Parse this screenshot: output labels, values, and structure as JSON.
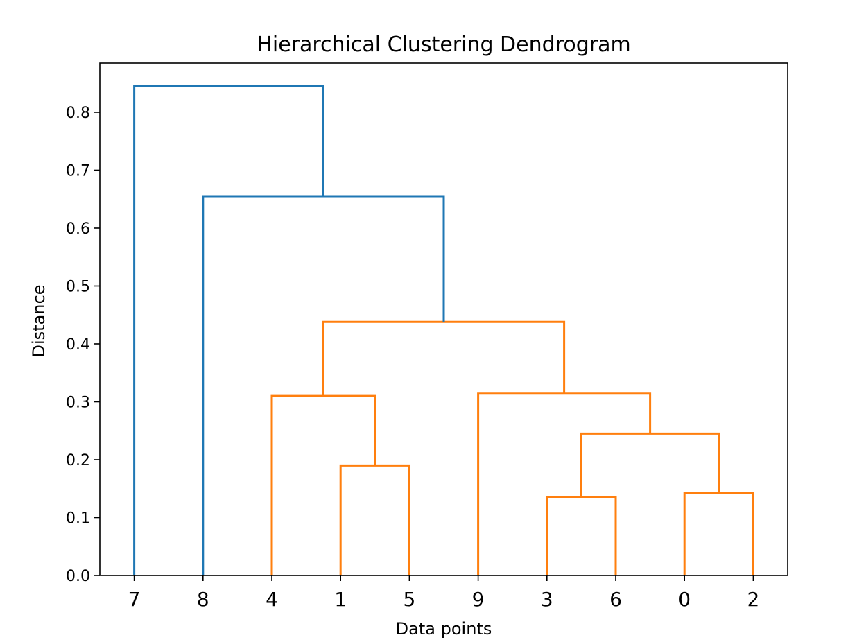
{
  "chart_data": {
    "type": "dendrogram",
    "title": "Hierarchical Clustering Dendrogram",
    "xlabel": "Data points",
    "ylabel": "Distance",
    "ylim": [
      0.0,
      0.885
    ],
    "grid": false,
    "leaf_order": [
      "7",
      "8",
      "4",
      "1",
      "5",
      "9",
      "3",
      "6",
      "0",
      "2"
    ],
    "yticks": [
      {
        "value": 0.0,
        "label": "0.0"
      },
      {
        "value": 0.1,
        "label": "0.1"
      },
      {
        "value": 0.2,
        "label": "0.2"
      },
      {
        "value": 0.3,
        "label": "0.3"
      },
      {
        "value": 0.4,
        "label": "0.4"
      },
      {
        "value": 0.5,
        "label": "0.5"
      },
      {
        "value": 0.6,
        "label": "0.6"
      },
      {
        "value": 0.7,
        "label": "0.7"
      },
      {
        "value": 0.8,
        "label": "0.8"
      }
    ],
    "colors": {
      "cluster": "#ff7f0e",
      "above_threshold": "#1f77b4"
    },
    "merges": [
      {
        "left": "1",
        "right": "5",
        "distance": 0.19,
        "color": "cluster"
      },
      {
        "left": "3",
        "right": "6",
        "distance": 0.135,
        "color": "cluster"
      },
      {
        "left": "0",
        "right": "2",
        "distance": 0.143,
        "color": "cluster"
      },
      {
        "left": "3,6",
        "right": "0,2",
        "distance": 0.245,
        "color": "cluster"
      },
      {
        "left": "4",
        "right": "1,5",
        "distance": 0.31,
        "color": "cluster"
      },
      {
        "left": "9",
        "right": "3,6,0,2",
        "distance": 0.314,
        "color": "cluster"
      },
      {
        "left": "4,1,5",
        "right": "9,3,6,0,2",
        "distance": 0.438,
        "color": "cluster"
      },
      {
        "left": "8",
        "right": "4,1,5,9,3,6,0,2",
        "distance": 0.655,
        "color": "above_threshold"
      },
      {
        "left": "7",
        "right": "8,4,1,5,9,3,6,0,2",
        "distance": 0.845,
        "color": "above_threshold"
      }
    ]
  }
}
